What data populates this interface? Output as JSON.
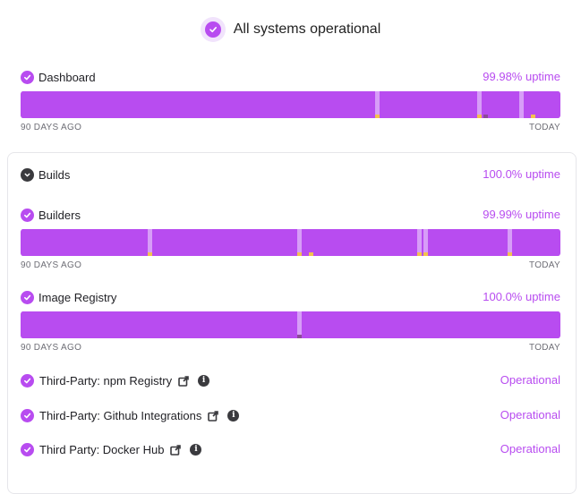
{
  "header": {
    "title": "All systems operational"
  },
  "axis": {
    "left": "90 DAYS AGO",
    "right": "TODAY"
  },
  "colors": {
    "accent": "#b84cf0",
    "light": "#d79df8",
    "incident": "#f2c14e",
    "dark_incident": "#8c4a98"
  },
  "components": [
    {
      "name": "Dashboard",
      "uptime": "99.98% uptime",
      "days": 90,
      "light_days": [
        59,
        76,
        83
      ],
      "incidents": [
        {
          "day": 59,
          "kind": "minor"
        },
        {
          "day": 76,
          "kind": "minor"
        },
        {
          "day": 77,
          "kind": "major"
        },
        {
          "day": 85,
          "kind": "minor"
        }
      ]
    },
    {
      "name": "Builders",
      "uptime": "99.99% uptime",
      "days": 90,
      "light_days": [
        21,
        46,
        66,
        67,
        81
      ],
      "incidents": [
        {
          "day": 21,
          "kind": "minor"
        },
        {
          "day": 46,
          "kind": "minor"
        },
        {
          "day": 48,
          "kind": "minor"
        },
        {
          "day": 66,
          "kind": "minor"
        },
        {
          "day": 67,
          "kind": "minor"
        },
        {
          "day": 81,
          "kind": "minor"
        }
      ]
    },
    {
      "name": "Image Registry",
      "uptime": "100.0% uptime",
      "days": 90,
      "light_days": [
        46
      ],
      "incidents": [
        {
          "day": 46,
          "kind": "major"
        }
      ]
    }
  ],
  "group": {
    "name": "Builds",
    "uptime": "100.0% uptime"
  },
  "third_party": [
    {
      "name": "Third-Party: npm Registry",
      "status": "Operational"
    },
    {
      "name": "Third-Party: Github Integrations",
      "status": "Operational"
    },
    {
      "name": "Third Party: Docker Hub",
      "status": "Operational"
    }
  ]
}
